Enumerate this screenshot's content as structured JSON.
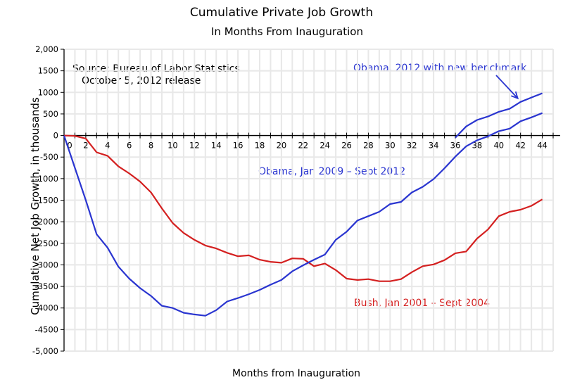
{
  "chart_data": {
    "type": "line",
    "title": "Cumulative Private Job Growth",
    "subtitle": "In Months From Inauguration",
    "xlabel": "Months from Inauguration",
    "ylabel": "Cumulative Net Job Growth, in thousands",
    "xlim": [
      0,
      45
    ],
    "ylim": [
      -5000,
      2000
    ],
    "grid": true,
    "x_ticks": [
      0,
      2,
      4,
      6,
      8,
      10,
      12,
      14,
      16,
      18,
      20,
      22,
      24,
      26,
      28,
      30,
      32,
      34,
      36,
      38,
      40,
      42,
      44
    ],
    "x_tick_labels": [
      "0",
      "2",
      "4",
      "6",
      "8",
      "10",
      "12",
      "14",
      "16",
      "18",
      "20",
      "22",
      "24",
      "26",
      "28",
      "30",
      "32",
      "34",
      "36",
      "38",
      "40",
      "42",
      "44"
    ],
    "y_ticks": [
      2000,
      1500,
      1000,
      500,
      0,
      -500,
      -1000,
      -1500,
      -2000,
      -2500,
      -3000,
      -3500,
      -4000,
      -4500,
      -5000
    ],
    "y_tick_labels": [
      "2,000",
      "1500",
      "1000",
      "500",
      "0",
      "-500",
      "-1000",
      "-1500",
      "-2000",
      "-2500",
      "-3000",
      "-3500",
      "-4000",
      "-4500",
      "-5,000"
    ],
    "series": [
      {
        "name": "Bush, Jan 2001 - Sept 2004",
        "color": "#d42020",
        "x_start": 0,
        "values": [
          0,
          -10,
          -70,
          -390,
          -470,
          -715,
          -880,
          -1070,
          -1320,
          -1690,
          -2030,
          -2260,
          -2420,
          -2550,
          -2620,
          -2720,
          -2800,
          -2780,
          -2880,
          -2930,
          -2950,
          -2850,
          -2860,
          -3030,
          -2970,
          -3120,
          -3320,
          -3350,
          -3330,
          -3380,
          -3380,
          -3330,
          -3170,
          -3030,
          -2990,
          -2890,
          -2730,
          -2690,
          -2390,
          -2180,
          -1870,
          -1770,
          -1720,
          -1630,
          -1480
        ]
      },
      {
        "name": "Obama, Jan 2009 - Sept 2012",
        "color": "#2a35d0",
        "x_start": 0,
        "values": [
          0,
          -750,
          -1500,
          -2290,
          -2600,
          -3040,
          -3320,
          -3540,
          -3720,
          -3950,
          -4000,
          -4110,
          -4150,
          -4180,
          -4050,
          -3850,
          -3770,
          -3680,
          -3580,
          -3460,
          -3350,
          -3150,
          -3010,
          -2880,
          -2760,
          -2420,
          -2230,
          -1970,
          -1870,
          -1770,
          -1590,
          -1540,
          -1320,
          -1190,
          -1010,
          -760,
          -490,
          -250,
          -110,
          -20,
          100,
          160,
          330,
          420,
          520
        ]
      },
      {
        "name": "Obama, 2012 with new benchmark",
        "color": "#2a35d0",
        "x_start": 36,
        "values": [
          -50,
          210,
          360,
          440,
          550,
          620,
          780,
          880,
          980
        ]
      }
    ],
    "annotations": [
      {
        "text": "Source:  Bureau of Labor Statistics",
        "color": "#000000"
      },
      {
        "text": "October 5, 2012 release",
        "color": "#000000"
      },
      {
        "text": "Obama, 2012 with new benchmark",
        "color": "#2a35d0",
        "arrow_to": {
          "x": 42,
          "y": 780
        }
      },
      {
        "text": "Obama, Jan 2009 – Sept 2012",
        "color": "#2a35d0"
      },
      {
        "text": "Bush, Jan 2001 – Sept 2004",
        "color": "#d42020"
      }
    ]
  }
}
